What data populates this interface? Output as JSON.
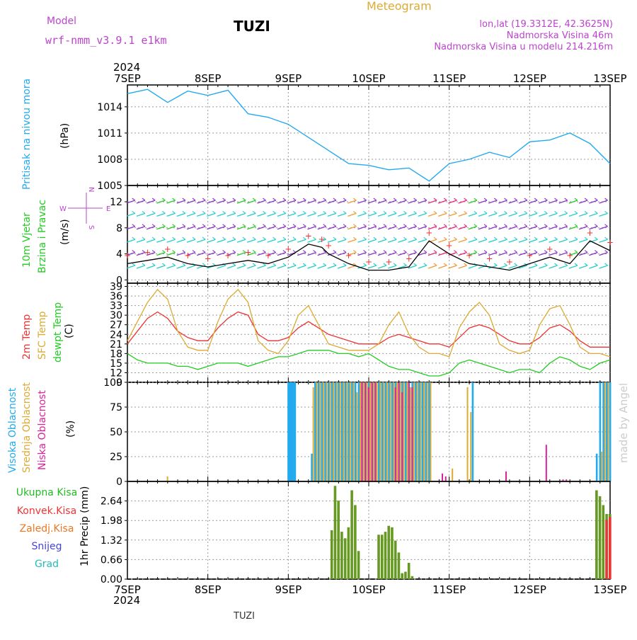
{
  "header": {
    "model_label": "Model",
    "model_name": "wrf-nmm_v3.9.1 e1km",
    "station": "TUZI",
    "product": "Meteogram",
    "lonlat": "lon,lat (19.3312E, 42.3625N)",
    "elevation": "Nadmorska Visina 46m",
    "model_elevation": "Nadmorska Visina u modelu 214.216m",
    "watermark": "made by Angel",
    "footer_station": "TUZI"
  },
  "time_axis": {
    "year": "2024",
    "days": [
      "7SEP",
      "8SEP",
      "9SEP",
      "10SEP",
      "11SEP",
      "12SEP",
      "13SEP"
    ],
    "colors": {
      "axis": "#000000",
      "grid": "#999999"
    }
  },
  "panels": {
    "pressure": {
      "label": "Pritisak na nivou mora",
      "unit": "(hPa)",
      "label_color": "#22aaee"
    },
    "wind": {
      "label_1": "10m Vjetar",
      "label_2": "Brzina i Pravac",
      "unit": "(m/s)",
      "label_color": "#22cc22",
      "compass": {
        "n": "N",
        "s": "S",
        "w": "W",
        "e": "E",
        "color": "#bb44cc"
      }
    },
    "temp": {
      "label_2m": "2m Temp",
      "label_sfc": "SFC Temp",
      "label_dew": "dewpt Temp",
      "unit": "(C)"
    },
    "cloud": {
      "label_high": "Visoka Oblacnost",
      "label_mid": "Srednja Oblacnost",
      "label_low": "Niska Oblacnost",
      "unit": "(%)"
    },
    "precip": {
      "legend": [
        "Ukupna Kisa",
        "Konvek.Kisa",
        "Zaledj.Kisa",
        "Snijeg",
        "Grad"
      ],
      "legend_colors": [
        "#22bb22",
        "#ee3333",
        "#ee7722",
        "#4444dd",
        "#22bbbb"
      ],
      "unit": "1hr Precip (mm)"
    }
  },
  "chart_data": [
    {
      "type": "line",
      "title": "",
      "series": [
        {
          "name": "Pritisak na nivou mora",
          "color": "#22aaee",
          "x_hours": [
            0,
            6,
            12,
            18,
            24,
            30,
            36,
            42,
            48,
            54,
            60,
            66,
            72,
            78,
            84,
            90,
            96,
            102,
            108,
            114,
            120,
            126,
            132,
            138,
            144
          ],
          "values": [
            1015.5,
            1016.0,
            1014.5,
            1015.8,
            1015.3,
            1015.9,
            1013.2,
            1012.8,
            1012.0,
            1010.5,
            1009.0,
            1007.5,
            1007.3,
            1006.8,
            1007.0,
            1005.5,
            1007.5,
            1008.0,
            1008.8,
            1008.2,
            1010.0,
            1010.2,
            1011.0,
            1009.8,
            1007.5
          ]
        }
      ],
      "ylim": [
        1005,
        1016.5
      ],
      "yticks": [
        1005,
        1008,
        1011,
        1014
      ],
      "grid": true
    },
    {
      "type": "line",
      "title": "",
      "series": [
        {
          "name": "10m Vjetar",
          "color": "#000000",
          "x_hours": [
            0,
            6,
            12,
            18,
            24,
            30,
            36,
            42,
            48,
            54,
            58,
            60,
            66,
            72,
            78,
            84,
            90,
            96,
            102,
            108,
            114,
            120,
            126,
            132,
            138,
            144
          ],
          "values": [
            2.5,
            3.0,
            3.5,
            2.5,
            2.0,
            2.5,
            3.0,
            2.5,
            3.5,
            5.5,
            5.0,
            4.0,
            2.5,
            1.5,
            1.5,
            2.0,
            6.0,
            4.0,
            2.5,
            2.0,
            1.5,
            2.5,
            3.5,
            2.5,
            6.0,
            4.5
          ]
        }
      ],
      "ylim": [
        -0.5,
        14.5
      ],
      "yticks": [
        0,
        4,
        8,
        12
      ],
      "grid": true
    },
    {
      "type": "line",
      "title": "",
      "x_hours": [
        0,
        3,
        6,
        9,
        12,
        15,
        18,
        21,
        24,
        27,
        30,
        33,
        36,
        39,
        42,
        45,
        48,
        51,
        54,
        57,
        60,
        63,
        66,
        69,
        72,
        75,
        78,
        81,
        84,
        87,
        90,
        93,
        96,
        99,
        102,
        105,
        108,
        111,
        114,
        117,
        120,
        123,
        126,
        129,
        132,
        135,
        138,
        141,
        144
      ],
      "series": [
        {
          "name": "2m Temp",
          "color": "#ee3333",
          "values": [
            21,
            25,
            29,
            31,
            29,
            25,
            23,
            22,
            22,
            26,
            29,
            31,
            30,
            24,
            22,
            22,
            23,
            26,
            28,
            26,
            24,
            23,
            22,
            21,
            21,
            21,
            23,
            24,
            23,
            22,
            21,
            21,
            20,
            23,
            26,
            27,
            26,
            24,
            22,
            21,
            21,
            23,
            26,
            27,
            25,
            22,
            20,
            20,
            20
          ]
        },
        {
          "name": "SFC Temp",
          "color": "#ddaa33",
          "values": [
            22,
            28,
            34,
            38,
            35,
            25,
            20,
            19,
            19,
            28,
            35,
            38,
            34,
            22,
            19,
            18,
            22,
            30,
            33,
            27,
            21,
            20,
            19,
            19,
            19,
            21,
            27,
            31,
            24,
            20,
            18,
            18,
            17,
            26,
            31,
            34,
            30,
            21,
            19,
            18,
            19,
            27,
            32,
            33,
            27,
            20,
            18,
            18,
            17
          ]
        },
        {
          "name": "dewpt Temp",
          "color": "#22cc22",
          "values": [
            18,
            16,
            15,
            15,
            15,
            14,
            14,
            13,
            14,
            15,
            15,
            15,
            14,
            15,
            16,
            17,
            17,
            18,
            19,
            19,
            19,
            18,
            18,
            17,
            18,
            16,
            14,
            13,
            13,
            12,
            11,
            11,
            12,
            15,
            16,
            15,
            14,
            13,
            12,
            13,
            13,
            12,
            15,
            17,
            16,
            14,
            13,
            15,
            16
          ]
        }
      ],
      "ylim": [
        9,
        40
      ],
      "yticks": [
        9,
        12,
        15,
        18,
        21,
        24,
        27,
        30,
        33,
        36,
        39
      ],
      "grid": true
    },
    {
      "type": "bar",
      "title": "",
      "note": "cloud fraction per hour, 0-100 %",
      "series": [
        {
          "name": "Visoka Oblacnost",
          "color": "#22aaee",
          "x_hours": [
            48,
            48.5,
            49,
            49.5,
            50,
            55,
            56,
            57,
            58,
            59,
            60,
            61,
            62,
            63,
            64,
            65,
            66,
            67,
            68,
            69,
            70,
            71,
            72,
            73,
            74,
            75,
            76,
            77,
            78,
            79,
            80,
            81,
            82,
            83,
            84,
            85,
            86,
            87,
            88,
            89,
            90,
            103,
            140,
            141,
            142,
            143,
            144
          ],
          "values": [
            100,
            100,
            100,
            100,
            100,
            28,
            100,
            100,
            100,
            100,
            100,
            100,
            100,
            100,
            100,
            100,
            100,
            100,
            100,
            100,
            100,
            100,
            100,
            100,
            100,
            100,
            100,
            100,
            100,
            100,
            100,
            100,
            100,
            100,
            100,
            100,
            100,
            100,
            100,
            100,
            100,
            100,
            28,
            100,
            100,
            100,
            100
          ]
        },
        {
          "name": "Srednja Oblacnost",
          "color": "#ddaa33",
          "x_hours": [
            12,
            55.5,
            56.5,
            57.5,
            58.5,
            59.5,
            60.5,
            61.5,
            62.5,
            63.5,
            64.5,
            65.5,
            66.5,
            67.5,
            68.5,
            69.5,
            70.5,
            71.5,
            72.5,
            73.5,
            74.5,
            75.5,
            76.5,
            77.5,
            78.5,
            79.5,
            80.5,
            81.5,
            82.5,
            83.5,
            84.5,
            85.5,
            86.5,
            87.5,
            88.5,
            89.5,
            90.5,
            97,
            101.5,
            102.5,
            141.5,
            142.5,
            143.5
          ],
          "values": [
            5,
            95,
            100,
            100,
            100,
            100,
            100,
            100,
            100,
            100,
            100,
            100,
            100,
            100,
            90,
            100,
            100,
            100,
            100,
            100,
            100,
            100,
            100,
            100,
            100,
            100,
            100,
            100,
            100,
            100,
            95,
            100,
            100,
            100,
            100,
            100,
            100,
            13,
            95,
            70,
            30,
            100,
            100
          ]
        },
        {
          "name": "Niska Oblacnost",
          "color": "#dd2299",
          "x_hours": [
            70,
            71,
            72,
            73,
            74,
            80,
            81,
            82,
            84,
            85,
            94,
            95,
            113,
            125,
            130,
            131
          ],
          "values": [
            100,
            100,
            95,
            100,
            100,
            95,
            100,
            90,
            100,
            95,
            8,
            5,
            10,
            37,
            2,
            2
          ]
        }
      ],
      "ylim": [
        0,
        100
      ],
      "yticks": [
        0,
        25,
        50,
        75,
        100
      ],
      "grid": true
    },
    {
      "type": "bar",
      "title": "",
      "series": [
        {
          "name": "Ukupna Kisa",
          "color": "#22bb22",
          "x_hours": [
            61,
            62,
            63,
            64,
            65,
            66,
            67,
            68,
            69,
            75,
            76,
            77,
            78,
            79,
            80,
            81,
            82,
            83,
            84,
            85,
            140,
            141,
            142,
            143,
            144
          ],
          "values": [
            1.65,
            3.15,
            2.65,
            1.6,
            1.38,
            1.75,
            3.0,
            2.5,
            0.95,
            1.5,
            1.5,
            1.6,
            1.8,
            1.75,
            1.3,
            0.9,
            0.2,
            0.25,
            0.55,
            0.1,
            3.0,
            2.8,
            2.5,
            2.2,
            2.2
          ]
        },
        {
          "name": "Konvek.Kisa",
          "color": "#ee3333",
          "x_hours": [
            143,
            144
          ],
          "values": [
            2.0,
            2.1
          ]
        }
      ],
      "ylim": [
        0,
        3.3
      ],
      "yticks": [
        0,
        0.66,
        1.32,
        1.98,
        2.64
      ],
      "grid": true
    }
  ]
}
